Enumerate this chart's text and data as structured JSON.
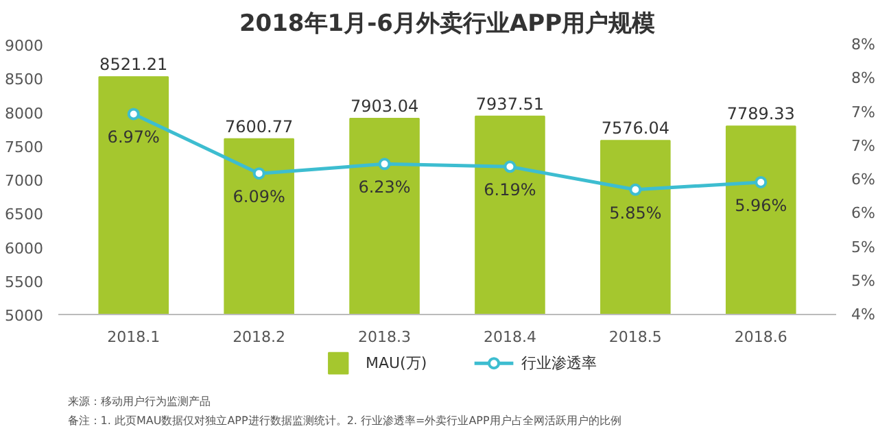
{
  "chart_data": {
    "type": "bar",
    "title": "2018年1月-6月外卖行业APP用户规模",
    "categories": [
      "2018.1",
      "2018.2",
      "2018.3",
      "2018.4",
      "2018.5",
      "2018.6"
    ],
    "series": [
      {
        "name": "MAU(万)",
        "color": "#a5c72e",
        "values": [
          8521.21,
          7600.77,
          7903.04,
          7937.51,
          7576.04,
          7789.33
        ],
        "value_labels": [
          "8521.21",
          "7600.77",
          "7903.04",
          "7937.51",
          "7576.04",
          "7789.33"
        ]
      },
      {
        "name": "行业渗透率",
        "type": "line",
        "axis": "y2",
        "color": "#3dbdd0",
        "values": [
          6.97,
          6.09,
          6.23,
          6.19,
          5.85,
          5.96
        ],
        "value_labels": [
          "6.97%",
          "6.09%",
          "6.23%",
          "6.19%",
          "5.85%",
          "5.96%"
        ]
      }
    ],
    "ylim": [
      5000,
      9000
    ],
    "yticks": [
      5000,
      5500,
      6000,
      6500,
      7000,
      7500,
      8000,
      8500,
      9000
    ],
    "y2lim": [
      4,
      8
    ],
    "y2ticks": [
      {
        "value": 4,
        "label": "4%"
      },
      {
        "value": 4.5,
        "label": "5%"
      },
      {
        "value": 5,
        "label": "5%"
      },
      {
        "value": 5.5,
        "label": "6%"
      },
      {
        "value": 6,
        "label": "6%"
      },
      {
        "value": 6.5,
        "label": "7%"
      },
      {
        "value": 7,
        "label": "7%"
      },
      {
        "value": 7.5,
        "label": "8%"
      },
      {
        "value": 8,
        "label": "8%"
      }
    ],
    "marker": "circle",
    "legend": "bottom",
    "grid": false,
    "annotations": [
      "来源：移动用户行为监测产品",
      "备注：1. 此页MAU数据仅对独立APP进行数据监测统计。2. 行业渗透率=外卖行业APP用户占全网活跃用户的比例"
    ]
  }
}
